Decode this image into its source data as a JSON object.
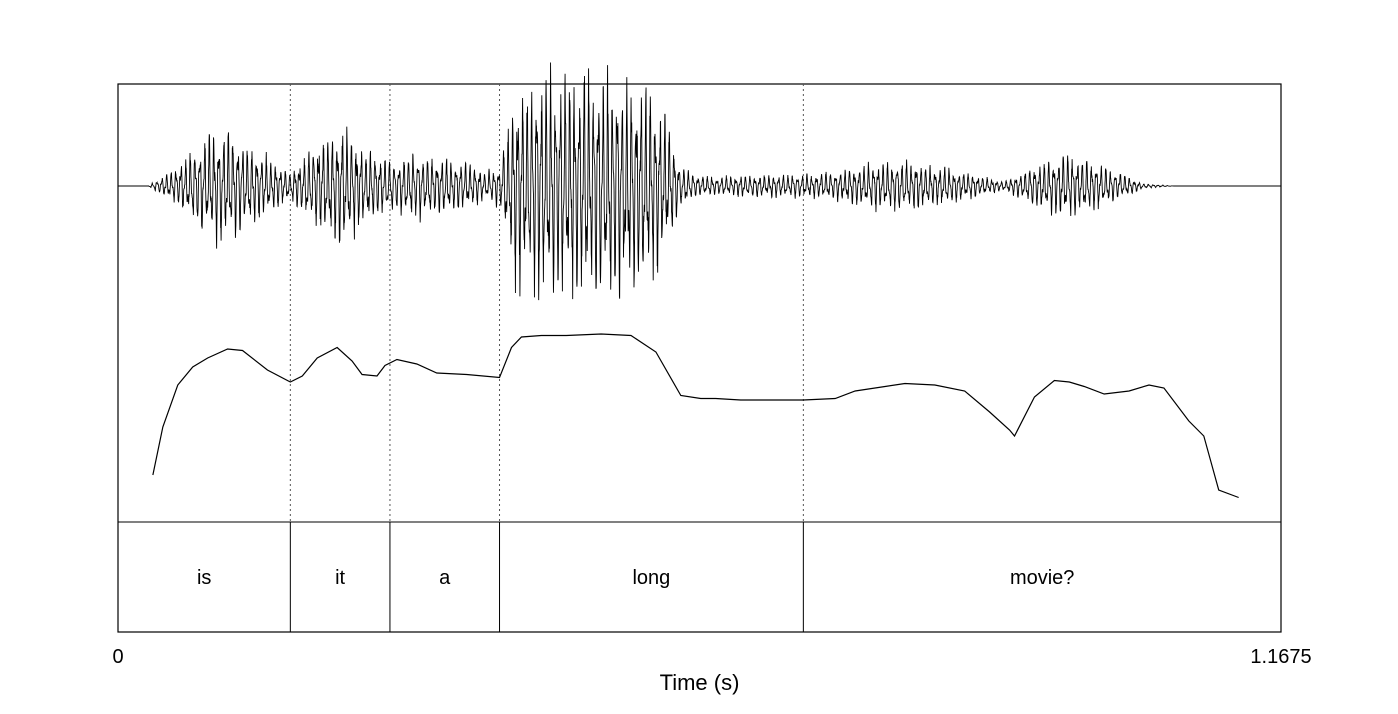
{
  "chart_data": {
    "type": "line",
    "xlabel": "Time (s)",
    "xlim": [
      0,
      1.1675
    ],
    "x_tick_labels": [
      "0",
      "1.1675"
    ],
    "panels": [
      "waveform",
      "pitch contour",
      "word tier"
    ],
    "boundaries": [
      0.173,
      0.273,
      0.383,
      0.688
    ],
    "words": [
      {
        "label": "is",
        "start": 0.0,
        "end": 0.173
      },
      {
        "label": "it",
        "start": 0.173,
        "end": 0.273
      },
      {
        "label": "a",
        "start": 0.273,
        "end": 0.383
      },
      {
        "label": "long",
        "start": 0.383,
        "end": 0.688
      },
      {
        "label": "movie?",
        "start": 0.688,
        "end": 1.1675
      }
    ],
    "waveform_envelope": {
      "x": [
        0.0,
        0.03,
        0.06,
        0.085,
        0.11,
        0.14,
        0.173,
        0.2,
        0.225,
        0.25,
        0.273,
        0.3,
        0.32,
        0.345,
        0.37,
        0.383,
        0.4,
        0.42,
        0.44,
        0.47,
        0.5,
        0.53,
        0.55,
        0.565,
        0.58,
        0.6,
        0.64,
        0.688,
        0.72,
        0.76,
        0.79,
        0.83,
        0.87,
        0.89,
        0.92,
        0.95,
        0.975,
        1.0,
        1.03,
        1.06,
        1.1,
        1.1675
      ],
      "amplitude": [
        0.0,
        0.0,
        0.18,
        0.42,
        0.5,
        0.32,
        0.12,
        0.4,
        0.52,
        0.32,
        0.22,
        0.28,
        0.26,
        0.22,
        0.12,
        0.18,
        0.85,
        0.95,
        0.98,
        1.0,
        0.98,
        0.9,
        0.6,
        0.18,
        0.1,
        0.08,
        0.1,
        0.1,
        0.12,
        0.2,
        0.22,
        0.16,
        0.08,
        0.04,
        0.18,
        0.28,
        0.22,
        0.14,
        0.02,
        0.0,
        0.0,
        0.0
      ]
    },
    "pitch_contour": {
      "x": [
        0.035,
        0.045,
        0.06,
        0.075,
        0.09,
        0.11,
        0.125,
        0.15,
        0.173,
        0.185,
        0.2,
        0.22,
        0.235,
        0.245,
        0.26,
        0.268,
        0.28,
        0.3,
        0.32,
        0.35,
        0.383,
        0.395,
        0.405,
        0.425,
        0.45,
        0.485,
        0.515,
        0.54,
        0.565,
        0.585,
        0.6,
        0.625,
        0.65,
        0.688,
        0.72,
        0.74,
        0.77,
        0.79,
        0.82,
        0.85,
        0.875,
        0.895,
        0.9,
        0.92,
        0.94,
        0.955,
        0.97,
        0.99,
        1.015,
        1.035,
        1.05,
        1.075,
        1.09,
        1.105,
        1.125
      ],
      "y": [
        0.1,
        0.42,
        0.7,
        0.82,
        0.88,
        0.94,
        0.93,
        0.8,
        0.72,
        0.76,
        0.88,
        0.95,
        0.86,
        0.77,
        0.76,
        0.83,
        0.87,
        0.84,
        0.78,
        0.77,
        0.75,
        0.95,
        1.02,
        1.03,
        1.03,
        1.04,
        1.03,
        0.92,
        0.63,
        0.61,
        0.61,
        0.6,
        0.6,
        0.6,
        0.61,
        0.66,
        0.69,
        0.71,
        0.7,
        0.66,
        0.52,
        0.4,
        0.36,
        0.62,
        0.73,
        0.72,
        0.69,
        0.64,
        0.66,
        0.7,
        0.68,
        0.46,
        0.36,
        0.0,
        -0.05
      ]
    }
  }
}
